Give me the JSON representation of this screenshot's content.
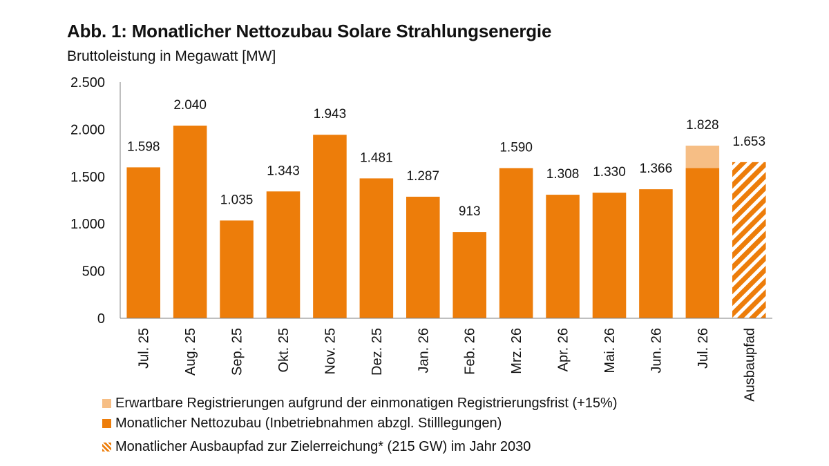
{
  "chart_data": {
    "type": "bar",
    "title": "Abb. 1: Monatlicher Nettozubau Solare Strahlungsenergie",
    "subtitle": "Bruttoleistung in Megawatt [MW]",
    "categories": [
      "Jul. 25",
      "Aug. 25",
      "Sep. 25",
      "Okt. 25",
      "Nov. 25",
      "Dez. 25",
      "Jan. 26",
      "Feb. 26",
      "Mrz. 26",
      "Apr. 26",
      "Mai. 26",
      "Jun. 26",
      "Jul. 26",
      "Ausbaupfad"
    ],
    "series": [
      {
        "name": "Monatlicher Nettozubau (Inbetriebnahmen abzgl. Stilllegungen)",
        "values": [
          1598,
          2040,
          1035,
          1343,
          1943,
          1481,
          1287,
          913,
          1590,
          1308,
          1330,
          1366,
          1590,
          null
        ],
        "color": "#ed7d0a"
      },
      {
        "name": "Erwartbare Registrierungen aufgrund der einmonatigen Registrierungsfrist (+15%)",
        "values": [
          null,
          null,
          null,
          null,
          null,
          null,
          null,
          null,
          null,
          null,
          null,
          null,
          238,
          null
        ],
        "color": "#f6be85"
      },
      {
        "name": "Monatlicher Ausbaupfad zur Zielerreichung* (215 GW) im Jahr 2030",
        "values": [
          null,
          null,
          null,
          null,
          null,
          null,
          null,
          null,
          null,
          null,
          null,
          null,
          null,
          1653
        ],
        "color": "#ed7d0a",
        "pattern": "hatched"
      }
    ],
    "data_labels": [
      "1.598",
      "2.040",
      "1.035",
      "1.343",
      "1.943",
      "1.481",
      "1.287",
      "913",
      "1.590",
      "1.308",
      "1.330",
      "1.366",
      "1.828",
      "1.653"
    ],
    "yticks": [
      0,
      500,
      1000,
      1500,
      2000,
      2500
    ],
    "ytick_labels": [
      "0",
      "500",
      "1.000",
      "1.500",
      "2.000",
      "2.500"
    ],
    "ylim": [
      0,
      2500
    ],
    "xlabel": "",
    "ylabel": "",
    "grid": false,
    "legend_position": "bottom"
  },
  "legend": [
    {
      "label": "Erwartbare Registrierungen aufgrund der einmonatigen Registrierungsfrist (+15%)",
      "color": "#f6be85",
      "pattern": "solid"
    },
    {
      "label": "Monatlicher Nettozubau (Inbetriebnahmen abzgl. Stilllegungen)",
      "color": "#ed7d0a",
      "pattern": "solid"
    },
    {
      "label": "Monatlicher Ausbaupfad zur Zielerreichung* (215 GW) im Jahr 2030",
      "color": "#ed7d0a",
      "pattern": "hatched"
    }
  ]
}
